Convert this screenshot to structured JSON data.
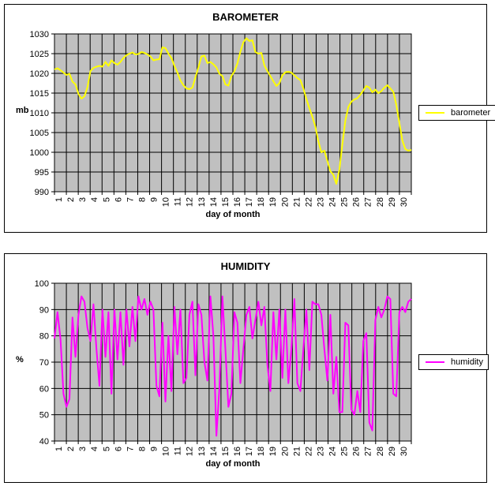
{
  "chart_data": [
    {
      "type": "line",
      "title": "BAROMETER",
      "ylabel": "mb",
      "xlabel": "day of month",
      "ylim": [
        990,
        1030
      ],
      "ytick_step": 5,
      "categories": [
        1,
        2,
        3,
        4,
        5,
        6,
        7,
        8,
        9,
        10,
        11,
        12,
        13,
        14,
        15,
        16,
        17,
        18,
        19,
        20,
        21,
        22,
        23,
        24,
        25,
        26,
        27,
        28,
        29,
        30
      ],
      "points_per_day": 4,
      "grid": true,
      "legend_position": "right",
      "plot_bg": "#C0C0C0",
      "grid_color": "#000000",
      "series": [
        {
          "name": "barometer",
          "color": "#FFFF00",
          "values": [
            1021.0,
            1021.3,
            1020.8,
            1020.2,
            1019.6,
            1019.9,
            1017.9,
            1017.2,
            1014.8,
            1013.6,
            1014.2,
            1016.5,
            1020.6,
            1021.4,
            1021.7,
            1021.9,
            1021.7,
            1022.9,
            1021.9,
            1023.3,
            1022.6,
            1022.2,
            1022.9,
            1023.9,
            1024.6,
            1025.0,
            1025.3,
            1024.8,
            1024.9,
            1025.4,
            1025.2,
            1024.8,
            1024.3,
            1023.3,
            1023.5,
            1023.6,
            1026.6,
            1026.4,
            1025.0,
            1023.9,
            1021.9,
            1020.2,
            1018.2,
            1017.0,
            1016.2,
            1016.0,
            1016.4,
            1019.0,
            1021.5,
            1024.3,
            1024.5,
            1022.6,
            1022.9,
            1022.3,
            1021.5,
            1019.9,
            1019.3,
            1017.2,
            1016.9,
            1019.3,
            1020.5,
            1022.5,
            1025.5,
            1027.9,
            1028.9,
            1028.2,
            1028.4,
            1025.4,
            1025.0,
            1025.2,
            1022.0,
            1020.6,
            1019.3,
            1018.0,
            1016.8,
            1017.5,
            1019.5,
            1020.3,
            1020.4,
            1020.2,
            1019.5,
            1018.8,
            1018.3,
            1016.2,
            1013.5,
            1011.2,
            1009.0,
            1006.5,
            1002.8,
            1000.0,
            1000.4,
            997.8,
            995.2,
            994.3,
            992.0,
            995.5,
            1002.0,
            1008.0,
            1011.5,
            1012.8,
            1013.4,
            1013.7,
            1014.6,
            1015.7,
            1016.8,
            1016.4,
            1015.2,
            1015.9,
            1015.0,
            1015.5,
            1016.4,
            1017.0,
            1016.2,
            1015.3,
            1012.0,
            1007.5,
            1003.0,
            1000.8,
            1000.4,
            1000.6
          ]
        }
      ]
    },
    {
      "type": "line",
      "title": "HUMIDITY",
      "ylabel": "%",
      "xlabel": "day of month",
      "ylim": [
        40,
        100
      ],
      "ytick_step": 10,
      "categories": [
        1,
        2,
        3,
        4,
        5,
        6,
        7,
        8,
        9,
        10,
        11,
        12,
        13,
        14,
        15,
        16,
        17,
        18,
        19,
        20,
        21,
        22,
        23,
        24,
        25,
        26,
        27,
        28,
        29,
        30
      ],
      "points_per_day": 4,
      "grid": true,
      "legend_position": "right",
      "plot_bg": "#C0C0C0",
      "grid_color": "#000000",
      "series": [
        {
          "name": "humidity",
          "color": "#FF00FF",
          "values": [
            79,
            89,
            79,
            58,
            53,
            56,
            87,
            72,
            88,
            95,
            93,
            83,
            78,
            92,
            75,
            61,
            90,
            72,
            89,
            58,
            90,
            71,
            89,
            69,
            90,
            76,
            91,
            78,
            95,
            90,
            94,
            88,
            93,
            90,
            61,
            57,
            85,
            55,
            80,
            59,
            91,
            73,
            90,
            62,
            64,
            88,
            93,
            65,
            92,
            88,
            70,
            63,
            95,
            80,
            42,
            60,
            95,
            75,
            53,
            58,
            89,
            85,
            62,
            75,
            88,
            91,
            79,
            86,
            93,
            84,
            91,
            69,
            59,
            89,
            71,
            90,
            64,
            90,
            62,
            75,
            94,
            62,
            59,
            75,
            90,
            67,
            93,
            92,
            92,
            88,
            75,
            63,
            88,
            58,
            72,
            51,
            51,
            85,
            84,
            52,
            50,
            59,
            51,
            78,
            81,
            47,
            44,
            86,
            91,
            87,
            90,
            95,
            94,
            58,
            57,
            89,
            91,
            89,
            93,
            94
          ]
        }
      ]
    }
  ]
}
